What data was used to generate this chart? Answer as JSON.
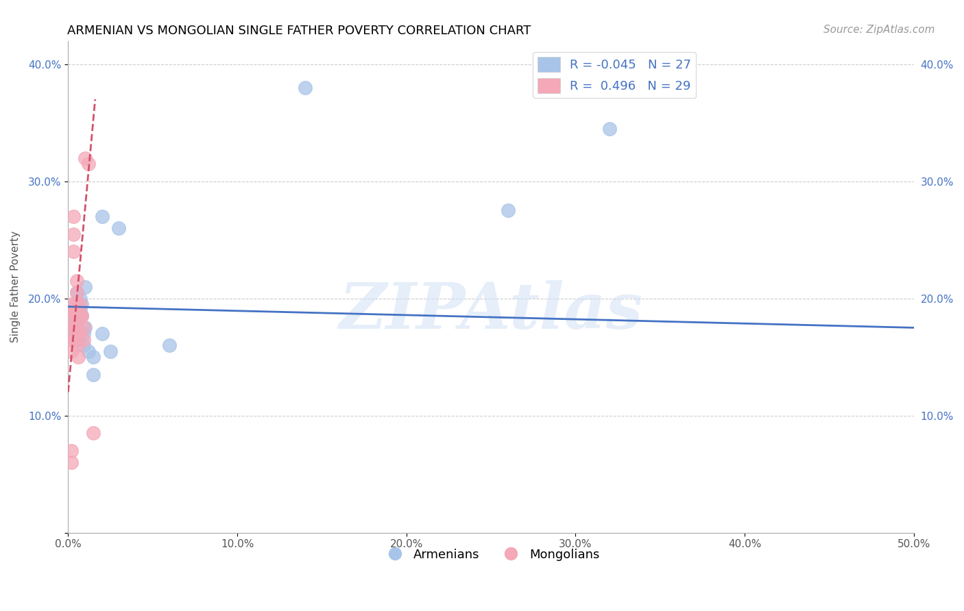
{
  "title": "ARMENIAN VS MONGOLIAN SINGLE FATHER POVERTY CORRELATION CHART",
  "source": "Source: ZipAtlas.com",
  "ylabel": "Single Father Poverty",
  "xlim": [
    0.0,
    0.5
  ],
  "ylim": [
    0.0,
    0.42
  ],
  "xticks": [
    0.0,
    0.1,
    0.2,
    0.3,
    0.4,
    0.5
  ],
  "xticklabels": [
    "0.0%",
    "10.0%",
    "20.0%",
    "30.0%",
    "40.0%",
    "50.0%"
  ],
  "yticks": [
    0.0,
    0.1,
    0.2,
    0.3,
    0.4
  ],
  "yticklabels": [
    "",
    "10.0%",
    "20.0%",
    "30.0%",
    "40.0%"
  ],
  "right_yticks": [
    0.1,
    0.2,
    0.3,
    0.4
  ],
  "right_yticklabels": [
    "10.0%",
    "20.0%",
    "30.0%",
    "40.0%"
  ],
  "legend_armenian_R": "-0.045",
  "legend_armenian_N": "27",
  "legend_mongolian_R": "0.496",
  "legend_mongolian_N": "29",
  "armenian_color": "#a8c4e8",
  "mongolian_color": "#f4a8b8",
  "armenian_line_color": "#4472c4",
  "mongolian_line_color": "#d4506a",
  "watermark": "ZIPAtlas",
  "armenian_x": [
    0.004,
    0.004,
    0.004,
    0.004,
    0.004,
    0.004,
    0.005,
    0.005,
    0.007,
    0.007,
    0.008,
    0.008,
    0.009,
    0.009,
    0.01,
    0.01,
    0.012,
    0.015,
    0.015,
    0.02,
    0.02,
    0.025,
    0.03,
    0.06,
    0.14,
    0.26,
    0.32
  ],
  "armenian_y": [
    0.195,
    0.19,
    0.185,
    0.18,
    0.175,
    0.17,
    0.205,
    0.165,
    0.2,
    0.19,
    0.195,
    0.185,
    0.17,
    0.16,
    0.21,
    0.175,
    0.155,
    0.15,
    0.135,
    0.27,
    0.17,
    0.155,
    0.26,
    0.16,
    0.38,
    0.275,
    0.345
  ],
  "mongolian_x": [
    0.002,
    0.002,
    0.002,
    0.002,
    0.002,
    0.002,
    0.002,
    0.003,
    0.003,
    0.003,
    0.003,
    0.004,
    0.004,
    0.004,
    0.005,
    0.005,
    0.005,
    0.005,
    0.006,
    0.006,
    0.006,
    0.007,
    0.007,
    0.008,
    0.009,
    0.009,
    0.01,
    0.012,
    0.015
  ],
  "mongolian_y": [
    0.195,
    0.185,
    0.175,
    0.165,
    0.155,
    0.07,
    0.06,
    0.27,
    0.255,
    0.24,
    0.19,
    0.185,
    0.175,
    0.165,
    0.215,
    0.205,
    0.195,
    0.175,
    0.17,
    0.16,
    0.15,
    0.195,
    0.185,
    0.185,
    0.175,
    0.165,
    0.32,
    0.315,
    0.085
  ],
  "armenian_trend_x": [
    0.0,
    0.5
  ],
  "armenian_trend_y": [
    0.193,
    0.175
  ],
  "mongolian_trend_x": [
    0.0,
    0.016
  ],
  "mongolian_trend_y": [
    0.12,
    0.37
  ]
}
